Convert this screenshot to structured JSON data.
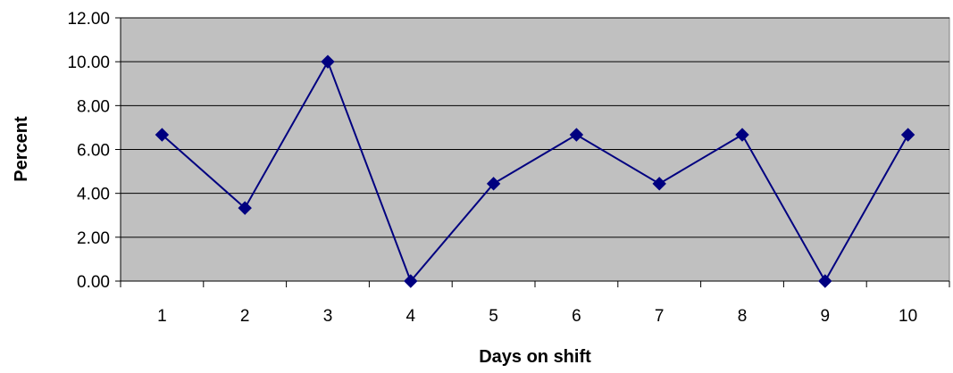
{
  "chart_data": {
    "type": "line",
    "title": "",
    "xlabel": "Days on shift",
    "ylabel": "Percent",
    "categories": [
      "1",
      "2",
      "3",
      "4",
      "5",
      "6",
      "7",
      "8",
      "9",
      "10"
    ],
    "series": [
      {
        "values": [
          6.67,
          3.33,
          10.0,
          0.0,
          4.44,
          6.67,
          4.44,
          6.67,
          0.0,
          6.67
        ]
      }
    ],
    "ylim": [
      0,
      12
    ],
    "ytick_step": 2,
    "ytick_labels": [
      "0.00",
      "2.00",
      "4.00",
      "6.00",
      "8.00",
      "10.00",
      "12.00"
    ],
    "grid": true,
    "legend": "none",
    "colors": {
      "plot_background": "#c0c0c0",
      "line": "#000080",
      "marker": "#000080",
      "gridline": "#000000"
    },
    "marker": "diamond-icon"
  }
}
